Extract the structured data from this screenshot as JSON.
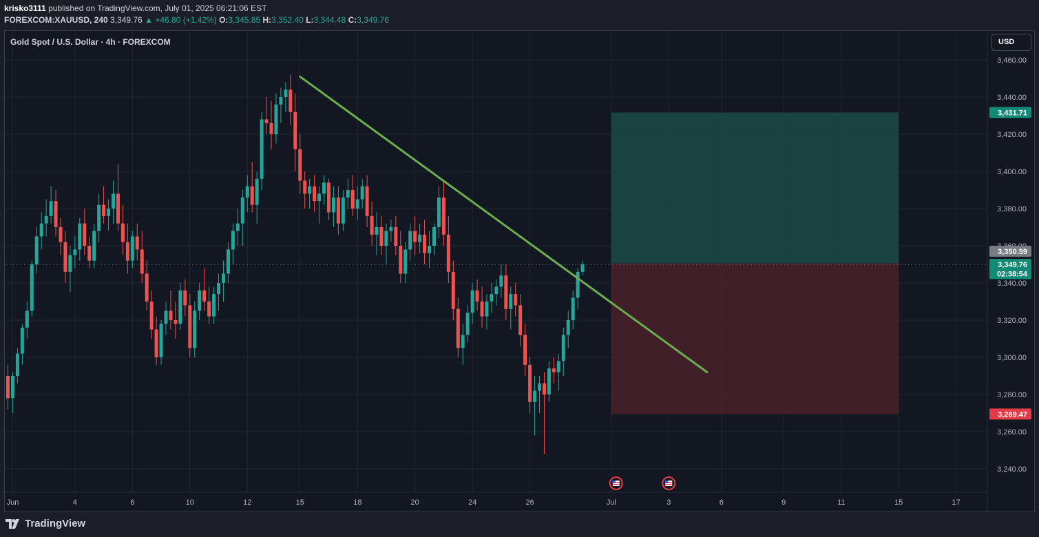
{
  "header": {
    "author": "krisko3111",
    "published_text": "published on TradingView.com, July 01, 2025 06:21:06 EST",
    "symbol": "FOREXCOM:XAUUSD, 240",
    "last": "3,349.76",
    "change": "▲ +46.80 (+1.42%)",
    "o_label": "O:",
    "o_value": "3,345.85",
    "h_label": "H:",
    "h_value": "3,352.40",
    "l_label": "L:",
    "l_value": "3,344.48",
    "c_label": "C:",
    "c_value": "3,349.76"
  },
  "chart_title": "Gold Spot / U.S. Dollar · 4h · FOREXCOM",
  "currency_button": "USD",
  "footer": {
    "brand": "TradingView"
  },
  "colors": {
    "up": "#26a69a",
    "down": "#ef5350",
    "trendline": "#6ab04c",
    "profit_zone": "#1b4a47",
    "loss_zone": "#4a2129",
    "background": "#131722"
  },
  "chart_data": {
    "type": "candlestick",
    "title": "Gold Spot / U.S. Dollar · 4h · FOREXCOM",
    "ylim": [
      3230,
      3470
    ],
    "yticks": [
      3240,
      3260,
      3280,
      3300,
      3320,
      3340,
      3360,
      3380,
      3400,
      3420,
      3440,
      3460
    ],
    "ytick_labels": [
      "3,240.00",
      "3,260.00",
      "3,280.00",
      "3,300.00",
      "3,320.00",
      "3,340.00",
      "3,360.00",
      "3,380.00",
      "3,400.00",
      "3,420.00",
      "3,440.00",
      "3,460.00"
    ],
    "xticks": [
      {
        "label": "Jun",
        "bar": 1
      },
      {
        "label": "4",
        "bar": 14
      },
      {
        "label": "6",
        "bar": 26
      },
      {
        "label": "10",
        "bar": 38
      },
      {
        "label": "12",
        "bar": 50
      },
      {
        "label": "15",
        "bar": 61
      },
      {
        "label": "18",
        "bar": 73
      },
      {
        "label": "20",
        "bar": 85
      },
      {
        "label": "24",
        "bar": 97
      },
      {
        "label": "26",
        "bar": 109
      },
      {
        "label": "Jul",
        "bar": 126
      },
      {
        "label": "3",
        "bar": 138
      },
      {
        "label": "6",
        "bar": 149
      },
      {
        "label": "9",
        "bar": 162
      },
      {
        "label": "11",
        "bar": 174
      },
      {
        "label": "15",
        "bar": 186
      },
      {
        "label": "17",
        "bar": 198
      }
    ],
    "grid": true,
    "candles_ohlc": [
      [
        3290,
        3296,
        3272,
        3278
      ],
      [
        3278,
        3292,
        3270,
        3290
      ],
      [
        3290,
        3305,
        3286,
        3302
      ],
      [
        3302,
        3318,
        3296,
        3316
      ],
      [
        3316,
        3330,
        3310,
        3325
      ],
      [
        3325,
        3352,
        3322,
        3350
      ],
      [
        3350,
        3370,
        3345,
        3365
      ],
      [
        3365,
        3378,
        3358,
        3372
      ],
      [
        3372,
        3385,
        3365,
        3376
      ],
      [
        3376,
        3392,
        3372,
        3384
      ],
      [
        3384,
        3390,
        3365,
        3370
      ],
      [
        3370,
        3375,
        3355,
        3362
      ],
      [
        3362,
        3368,
        3340,
        3346
      ],
      [
        3346,
        3360,
        3335,
        3355
      ],
      [
        3355,
        3365,
        3348,
        3358
      ],
      [
        3358,
        3375,
        3352,
        3372
      ],
      [
        3372,
        3380,
        3355,
        3360
      ],
      [
        3360,
        3365,
        3348,
        3352
      ],
      [
        3352,
        3372,
        3348,
        3368
      ],
      [
        3368,
        3388,
        3362,
        3382
      ],
      [
        3382,
        3392,
        3372,
        3376
      ],
      [
        3376,
        3385,
        3368,
        3380
      ],
      [
        3380,
        3395,
        3372,
        3388
      ],
      [
        3388,
        3404,
        3368,
        3372
      ],
      [
        3372,
        3382,
        3355,
        3362
      ],
      [
        3362,
        3372,
        3345,
        3352
      ],
      [
        3352,
        3368,
        3348,
        3365
      ],
      [
        3365,
        3372,
        3352,
        3358
      ],
      [
        3358,
        3368,
        3340,
        3345
      ],
      [
        3345,
        3352,
        3325,
        3330
      ],
      [
        3330,
        3336,
        3310,
        3315
      ],
      [
        3315,
        3322,
        3296,
        3300
      ],
      [
        3300,
        3320,
        3296,
        3318
      ],
      [
        3318,
        3330,
        3312,
        3325
      ],
      [
        3325,
        3336,
        3315,
        3320
      ],
      [
        3320,
        3330,
        3310,
        3318
      ],
      [
        3318,
        3340,
        3315,
        3336
      ],
      [
        3336,
        3342,
        3322,
        3328
      ],
      [
        3328,
        3334,
        3300,
        3305
      ],
      [
        3305,
        3330,
        3300,
        3325
      ],
      [
        3325,
        3340,
        3320,
        3336
      ],
      [
        3336,
        3348,
        3325,
        3330
      ],
      [
        3330,
        3338,
        3318,
        3322
      ],
      [
        3322,
        3338,
        3318,
        3334
      ],
      [
        3334,
        3345,
        3325,
        3340
      ],
      [
        3340,
        3352,
        3330,
        3345
      ],
      [
        3345,
        3362,
        3340,
        3358
      ],
      [
        3358,
        3372,
        3350,
        3368
      ],
      [
        3368,
        3380,
        3360,
        3372
      ],
      [
        3372,
        3390,
        3360,
        3386
      ],
      [
        3386,
        3398,
        3378,
        3392
      ],
      [
        3392,
        3405,
        3378,
        3382
      ],
      [
        3382,
        3400,
        3372,
        3396
      ],
      [
        3396,
        3432,
        3390,
        3428
      ],
      [
        3428,
        3440,
        3420,
        3426
      ],
      [
        3426,
        3438,
        3412,
        3420
      ],
      [
        3420,
        3442,
        3415,
        3436
      ],
      [
        3436,
        3445,
        3426,
        3440
      ],
      [
        3440,
        3448,
        3432,
        3444
      ],
      [
        3444,
        3452,
        3425,
        3432
      ],
      [
        3432,
        3442,
        3400,
        3412
      ],
      [
        3412,
        3420,
        3388,
        3395
      ],
      [
        3395,
        3400,
        3380,
        3388
      ],
      [
        3388,
        3396,
        3380,
        3392
      ],
      [
        3392,
        3398,
        3378,
        3384
      ],
      [
        3384,
        3392,
        3372,
        3388
      ],
      [
        3388,
        3398,
        3382,
        3394
      ],
      [
        3394,
        3396,
        3374,
        3378
      ],
      [
        3378,
        3392,
        3370,
        3386
      ],
      [
        3386,
        3392,
        3366,
        3372
      ],
      [
        3372,
        3390,
        3368,
        3386
      ],
      [
        3386,
        3396,
        3380,
        3390
      ],
      [
        3390,
        3398,
        3376,
        3380
      ],
      [
        3380,
        3392,
        3374,
        3385
      ],
      [
        3385,
        3396,
        3380,
        3392
      ],
      [
        3392,
        3398,
        3370,
        3376
      ],
      [
        3376,
        3384,
        3360,
        3366
      ],
      [
        3366,
        3378,
        3355,
        3370
      ],
      [
        3370,
        3376,
        3355,
        3360
      ],
      [
        3360,
        3372,
        3350,
        3368
      ],
      [
        3368,
        3374,
        3362,
        3370
      ],
      [
        3370,
        3376,
        3355,
        3360
      ],
      [
        3360,
        3368,
        3340,
        3345
      ],
      [
        3345,
        3362,
        3340,
        3358
      ],
      [
        3358,
        3372,
        3352,
        3368
      ],
      [
        3368,
        3376,
        3355,
        3362
      ],
      [
        3362,
        3372,
        3356,
        3366
      ],
      [
        3366,
        3374,
        3350,
        3356
      ],
      [
        3356,
        3368,
        3348,
        3360
      ],
      [
        3360,
        3372,
        3355,
        3370
      ],
      [
        3370,
        3392,
        3364,
        3386
      ],
      [
        3386,
        3395,
        3360,
        3366
      ],
      [
        3366,
        3376,
        3340,
        3346
      ],
      [
        3346,
        3352,
        3320,
        3326
      ],
      [
        3326,
        3332,
        3300,
        3305
      ],
      [
        3305,
        3318,
        3296,
        3312
      ],
      [
        3312,
        3328,
        3308,
        3324
      ],
      [
        3324,
        3340,
        3318,
        3336
      ],
      [
        3336,
        3342,
        3325,
        3330
      ],
      [
        3330,
        3338,
        3316,
        3322
      ],
      [
        3322,
        3334,
        3315,
        3330
      ],
      [
        3330,
        3340,
        3324,
        3334
      ],
      [
        3334,
        3342,
        3328,
        3338
      ],
      [
        3338,
        3350,
        3332,
        3344
      ],
      [
        3344,
        3350,
        3320,
        3326
      ],
      [
        3326,
        3338,
        3315,
        3334
      ],
      [
        3334,
        3340,
        3322,
        3328
      ],
      [
        3328,
        3334,
        3306,
        3312
      ],
      [
        3312,
        3318,
        3290,
        3296
      ],
      [
        3296,
        3300,
        3270,
        3276
      ],
      [
        3276,
        3290,
        3258,
        3282
      ],
      [
        3282,
        3290,
        3270,
        3286
      ],
      [
        3286,
        3292,
        3248,
        3280
      ],
      [
        3280,
        3298,
        3276,
        3294
      ],
      [
        3294,
        3300,
        3286,
        3292
      ],
      [
        3292,
        3302,
        3282,
        3298
      ],
      [
        3298,
        3316,
        3290,
        3312
      ],
      [
        3312,
        3325,
        3305,
        3320
      ],
      [
        3320,
        3336,
        3315,
        3332
      ],
      [
        3332,
        3348,
        3326,
        3346
      ],
      [
        3346,
        3352,
        3344,
        3350
      ]
    ],
    "trendline": {
      "start": {
        "bar": 61,
        "price": 3451
      },
      "end": {
        "bar": 146,
        "price": 3292
      }
    },
    "position": {
      "entry": 3350.59,
      "target": 3431.71,
      "stop": 3269.47,
      "start_bar": 126,
      "end_bar": 186
    },
    "price_labels": {
      "target": "3,431.71",
      "entry": "3,350.59",
      "last": "3,349.76",
      "countdown": "02:38:54",
      "stop": "3,269.47"
    },
    "event_markers": [
      {
        "bar": 127
      },
      {
        "bar": 138
      }
    ]
  }
}
